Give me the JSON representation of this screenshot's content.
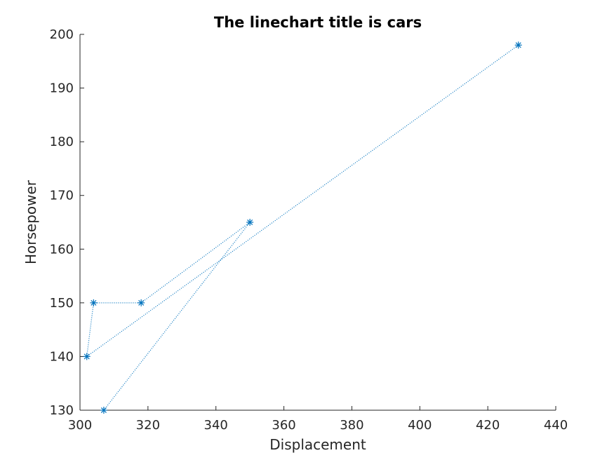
{
  "chart_data": {
    "type": "line",
    "title": "The linechart title is cars",
    "xlabel": "Displacement",
    "ylabel": "Horsepower",
    "xlim": [
      300,
      440
    ],
    "ylim": [
      130,
      200
    ],
    "xticks": [
      300,
      320,
      340,
      360,
      380,
      400,
      420,
      440
    ],
    "yticks": [
      130,
      140,
      150,
      160,
      170,
      180,
      190,
      200
    ],
    "grid": false,
    "line_style": "dotted",
    "marker": "asterisk",
    "color": "#0072BD",
    "series": [
      {
        "x": [
          307,
          350,
          318,
          304,
          302,
          429
        ],
        "y": [
          130,
          165,
          150,
          150,
          140,
          198
        ]
      }
    ]
  }
}
